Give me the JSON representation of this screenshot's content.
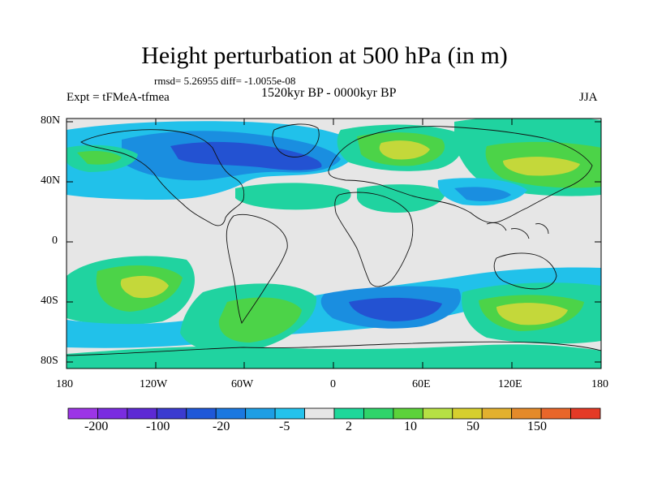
{
  "title": "Height perturbation at 500 hPa (in m)",
  "rmsd_line": "rmsd= 5.26955 diff= -1.0055e-08",
  "period": "1520kyr BP - 0000kyr BP",
  "experiment": "Expt = tFMeA-tfmea",
  "season": "JJA",
  "axes": {
    "lat_labels": [
      "80N",
      "40N",
      "0",
      "40S",
      "80S"
    ],
    "lon_labels": [
      "180",
      "120W",
      "60W",
      "0",
      "60E",
      "120E",
      "180"
    ]
  },
  "colorbar": {
    "labels": [
      "-200",
      "-100",
      "-20",
      "-5",
      "2",
      "10",
      "50",
      "150"
    ],
    "colors": [
      "#9c35e6",
      "#7a2ce0",
      "#5d2ad4",
      "#3b3bd0",
      "#1f58d8",
      "#1b78e0",
      "#1e9ee4",
      "#24c2ec",
      "#e6e6e6",
      "#1ed79a",
      "#2fd46a",
      "#5cd23a",
      "#b6e044",
      "#d6cf2e",
      "#e2b02e",
      "#e48a2a",
      "#e8662a",
      "#e43a26"
    ]
  },
  "palette": {
    "neg_strong": "#2352d2",
    "neg_mid": "#1a8ee0",
    "neg_weak": "#21c1ea",
    "neutral": "#e6e6e6",
    "pos_weak": "#20d3a0",
    "pos_mid": "#4cd348",
    "pos_strong": "#c4d83a"
  }
}
